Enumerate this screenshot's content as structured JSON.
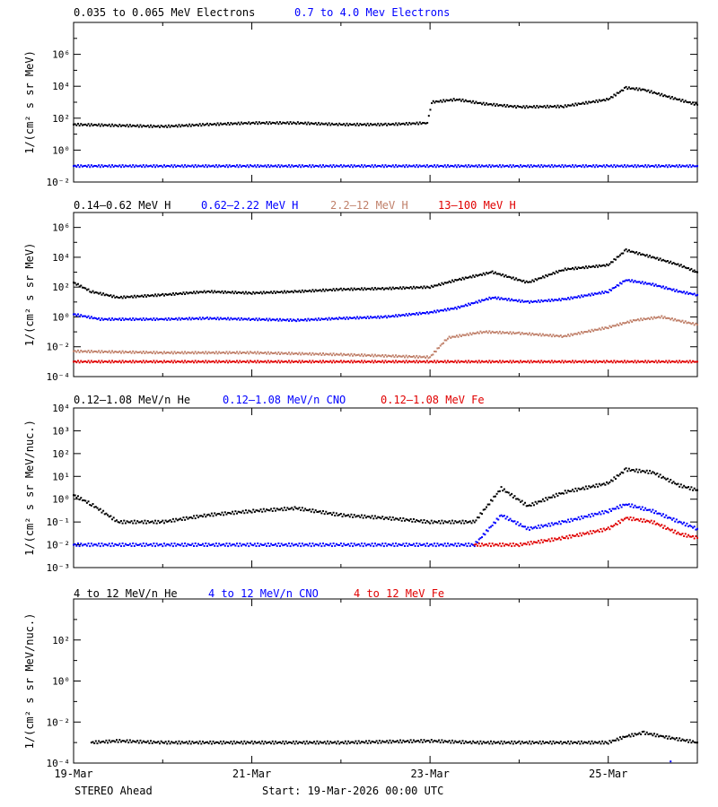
{
  "footer": {
    "observatory": "STEREO Ahead",
    "start_label": "Start: 19-Mar-2026 00:00 UTC"
  },
  "colors": {
    "black": "#000000",
    "blue": "#0000ff",
    "tan": "#c0806a",
    "red": "#e00000"
  },
  "chart_data": [
    {
      "type": "scatter",
      "ylabel": "1/(cm² s sr MeV)",
      "yscale": "log",
      "ylim": [
        0.001,
        10000000
      ],
      "ytick_labels": [
        "10⁻²",
        "10⁰",
        "10²",
        "10⁴",
        "10⁶"
      ],
      "xlim": [
        0,
        7
      ],
      "xtick_labels": [
        "19-Mar",
        "21-Mar",
        "23-Mar",
        "25-Mar"
      ],
      "series": [
        {
          "name": "0.035 to 0.065 MeV Electrons",
          "color": "#000000",
          "points": [
            [
              0,
              4
            ],
            [
              0.5,
              3.5
            ],
            [
              1,
              3
            ],
            [
              1.5,
              4
            ],
            [
              2,
              5
            ],
            [
              2.5,
              5
            ],
            [
              3,
              4
            ],
            [
              3.5,
              4
            ],
            [
              3.97,
              5
            ],
            [
              4.02,
              100
            ],
            [
              4.3,
              150
            ],
            [
              4.6,
              80
            ],
            [
              5,
              50
            ],
            [
              5.5,
              55
            ],
            [
              6,
              150
            ],
            [
              6.2,
              800
            ],
            [
              6.4,
              600
            ],
            [
              6.7,
              200
            ],
            [
              7,
              70
            ]
          ]
        },
        {
          "name": "0.7 to 4.0 Mev Electrons",
          "color": "#0000ff",
          "points": [
            [
              0,
              0.01
            ],
            [
              1,
              0.01
            ],
            [
              2,
              0.01
            ],
            [
              3,
              0.01
            ],
            [
              4,
              0.01
            ],
            [
              5,
              0.01
            ],
            [
              6,
              0.01
            ],
            [
              7,
              0.01
            ]
          ]
        }
      ]
    },
    {
      "type": "scatter",
      "ylabel": "1/(cm² s sr MeV)",
      "yscale": "log",
      "ylim": [
        1e-05,
        1000000
      ],
      "ytick_labels": [
        "10⁻⁴",
        "10⁻²",
        "10⁰",
        "10²",
        "10⁴",
        "10⁶"
      ],
      "xlim": [
        0,
        7
      ],
      "xtick_labels": [
        "19-Mar",
        "21-Mar",
        "23-Mar",
        "25-Mar"
      ],
      "series": [
        {
          "name": "0.14–0.62 MeV H",
          "color": "#000000",
          "points": [
            [
              0,
              20
            ],
            [
              0.2,
              5
            ],
            [
              0.5,
              2
            ],
            [
              1,
              3
            ],
            [
              1.5,
              5
            ],
            [
              2,
              4
            ],
            [
              2.5,
              5
            ],
            [
              3,
              7
            ],
            [
              3.5,
              8
            ],
            [
              4,
              10
            ],
            [
              4.3,
              30
            ],
            [
              4.7,
              100
            ],
            [
              5.1,
              20
            ],
            [
              5.5,
              150
            ],
            [
              6,
              300
            ],
            [
              6.2,
              3000
            ],
            [
              6.5,
              1000
            ],
            [
              6.8,
              300
            ],
            [
              7,
              100
            ]
          ]
        },
        {
          "name": "0.62–2.22 MeV H",
          "color": "#0000ff",
          "points": [
            [
              0,
              0.15
            ],
            [
              0.3,
              0.07
            ],
            [
              1,
              0.07
            ],
            [
              1.5,
              0.08
            ],
            [
              2,
              0.07
            ],
            [
              2.5,
              0.06
            ],
            [
              3,
              0.08
            ],
            [
              3.5,
              0.1
            ],
            [
              4,
              0.2
            ],
            [
              4.3,
              0.4
            ],
            [
              4.7,
              2
            ],
            [
              5.1,
              1
            ],
            [
              5.5,
              1.5
            ],
            [
              6,
              5
            ],
            [
              6.2,
              30
            ],
            [
              6.5,
              15
            ],
            [
              6.8,
              5
            ],
            [
              7,
              3
            ]
          ]
        },
        {
          "name": "2.2–12 MeV H",
          "color": "#c0806a",
          "points": [
            [
              0,
              0.0005
            ],
            [
              1,
              0.0004
            ],
            [
              2,
              0.0004
            ],
            [
              3,
              0.0003
            ],
            [
              4,
              0.0002
            ],
            [
              4.2,
              0.004
            ],
            [
              4.6,
              0.01
            ],
            [
              5,
              0.008
            ],
            [
              5.5,
              0.005
            ],
            [
              6,
              0.02
            ],
            [
              6.3,
              0.06
            ],
            [
              6.6,
              0.1
            ],
            [
              7,
              0.03
            ]
          ]
        },
        {
          "name": "13–100 MeV H",
          "color": "#e00000",
          "points": [
            [
              0,
              0.0001
            ],
            [
              1,
              0.0001
            ],
            [
              2,
              0.0001
            ],
            [
              3,
              0.0001
            ],
            [
              4,
              0.0001
            ],
            [
              5,
              0.0001
            ],
            [
              6,
              0.0001
            ],
            [
              7,
              0.0001
            ]
          ]
        }
      ]
    },
    {
      "type": "scatter",
      "ylabel": "1/(cm² s sr MeV/nuc.)",
      "yscale": "log",
      "ylim": [
        0.001,
        10000
      ],
      "ytick_labels": [
        "10⁻³",
        "10⁻²",
        "10⁻¹",
        "10⁰",
        "10¹",
        "10²",
        "10³",
        "10⁴"
      ],
      "xlim": [
        0,
        7
      ],
      "xtick_labels": [
        "19-Mar",
        "21-Mar",
        "23-Mar",
        "25-Mar"
      ],
      "series": [
        {
          "name": "0.12–1.08 MeV/n He",
          "color": "#000000",
          "points": [
            [
              0,
              1.5
            ],
            [
              0.2,
              0.6
            ],
            [
              0.5,
              0.1
            ],
            [
              1,
              0.1
            ],
            [
              1.5,
              0.2
            ],
            [
              2,
              0.3
            ],
            [
              2.5,
              0.4
            ],
            [
              3,
              0.2
            ],
            [
              3.5,
              0.15
            ],
            [
              4,
              0.1
            ],
            [
              4.5,
              0.1
            ],
            [
              4.8,
              3
            ],
            [
              5.1,
              0.5
            ],
            [
              5.5,
              2
            ],
            [
              6,
              5
            ],
            [
              6.2,
              20
            ],
            [
              6.5,
              15
            ],
            [
              6.8,
              4
            ],
            [
              7,
              2.5
            ]
          ]
        },
        {
          "name": "0.12–1.08 MeV/n CNO",
          "color": "#0000ff",
          "points": [
            [
              0,
              0.01
            ],
            [
              1,
              0.01
            ],
            [
              2,
              0.01
            ],
            [
              3,
              0.01
            ],
            [
              4,
              0.01
            ],
            [
              4.5,
              0.01
            ],
            [
              4.8,
              0.2
            ],
            [
              5.1,
              0.05
            ],
            [
              5.5,
              0.1
            ],
            [
              6,
              0.3
            ],
            [
              6.2,
              0.6
            ],
            [
              6.5,
              0.3
            ],
            [
              6.8,
              0.1
            ],
            [
              7,
              0.05
            ]
          ]
        },
        {
          "name": "0.12–1.08 MeV Fe",
          "color": "#e00000",
          "points": [
            [
              4.5,
              0.01
            ],
            [
              5,
              0.01
            ],
            [
              5.5,
              0.02
            ],
            [
              6,
              0.05
            ],
            [
              6.2,
              0.15
            ],
            [
              6.5,
              0.1
            ],
            [
              6.8,
              0.03
            ],
            [
              7,
              0.02
            ]
          ]
        }
      ]
    },
    {
      "type": "scatter",
      "ylabel": "1/(cm² s sr MeV/nuc.)",
      "yscale": "log",
      "ylim": [
        1e-05,
        1000
      ],
      "ytick_labels": [
        "10⁻⁴",
        "10⁻²",
        "10⁰",
        "10²"
      ],
      "xlim": [
        0,
        7
      ],
      "xtick_labels": [
        "19-Mar",
        "21-Mar",
        "23-Mar",
        "25-Mar"
      ],
      "series": [
        {
          "name": "4 to 12 MeV/n He",
          "color": "#000000",
          "points": [
            [
              0.2,
              0.0001
            ],
            [
              0.5,
              0.00012
            ],
            [
              1,
              0.0001
            ],
            [
              2,
              0.0001
            ],
            [
              3,
              0.0001
            ],
            [
              4,
              0.00012
            ],
            [
              4.5,
              0.0001
            ],
            [
              5,
              0.0001
            ],
            [
              5.5,
              0.0001
            ],
            [
              6,
              0.0001
            ],
            [
              6.2,
              0.0002
            ],
            [
              6.4,
              0.0003
            ],
            [
              6.6,
              0.0002
            ],
            [
              7,
              0.0001
            ]
          ]
        },
        {
          "name": "4 to 12 MeV/n CNO",
          "color": "#0000ff",
          "points": [
            [
              6.7,
              1.2e-05
            ]
          ]
        },
        {
          "name": "4 to 12 MeV Fe",
          "color": "#e00000",
          "points": []
        }
      ]
    }
  ]
}
